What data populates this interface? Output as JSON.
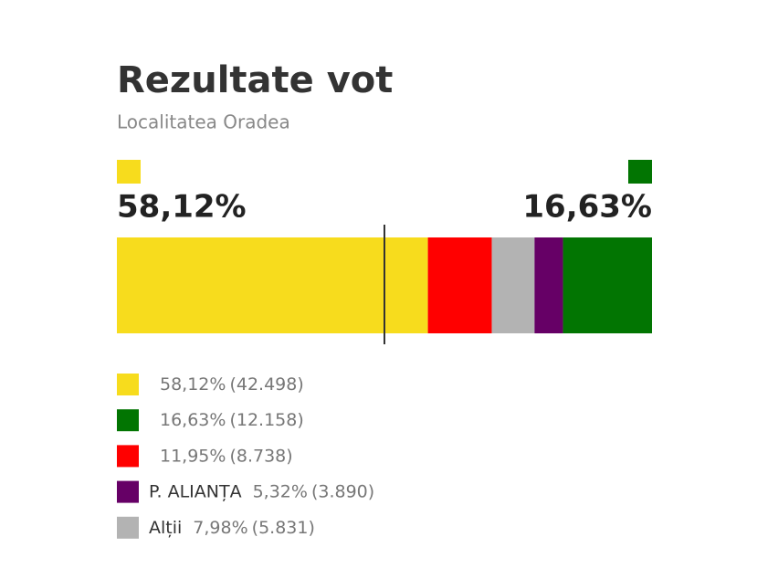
{
  "chart_data": {
    "type": "stacked-bar",
    "title": "Rezultate vot",
    "subtitle": "Localitatea Oradea",
    "xlim": [
      0,
      100
    ],
    "threshold": 50,
    "series": [
      {
        "name": null,
        "color": "#f7dc1d",
        "values": [
          58.12
        ],
        "value_labels": [
          "58,12%"
        ],
        "votes": [
          {
            "value": 42498,
            "label": "(42.498)"
          }
        ],
        "headline": true
      },
      {
        "name": null,
        "color": "#027502",
        "values": [
          16.63
        ],
        "value_labels": [
          "16,63%"
        ],
        "votes": [
          {
            "value": 12158,
            "label": "(12.158)"
          }
        ],
        "headline": true
      },
      {
        "name": null,
        "color": "#ff0000",
        "values": [
          11.95
        ],
        "value_labels": [
          "11,95%"
        ],
        "votes": [
          {
            "value": 8738,
            "label": "(8.738)"
          }
        ]
      },
      {
        "name": "P. ALIANȚA",
        "color": "#660066",
        "values": [
          5.32
        ],
        "value_labels": [
          "5,32%"
        ],
        "votes": [
          {
            "value": 3890,
            "label": "(3.890)"
          }
        ]
      },
      {
        "name": "Alții",
        "color": "#b3b3b3",
        "values": [
          7.98
        ],
        "value_labels": [
          "7,98%"
        ],
        "votes": [
          {
            "value": 5831,
            "label": "(5.831)"
          }
        ]
      }
    ],
    "bar_order": [
      0,
      2,
      4,
      3,
      1
    ]
  }
}
